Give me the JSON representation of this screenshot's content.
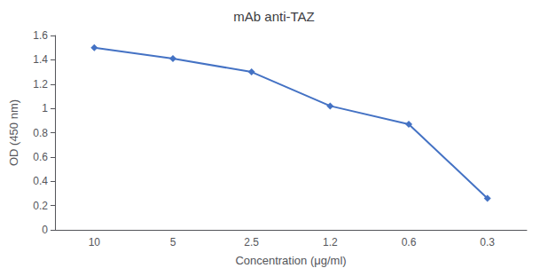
{
  "chart_data": {
    "type": "line",
    "title": "mAb anti-TAZ",
    "xlabel": "Concentration (μg/ml)",
    "ylabel": "OD (450 nm)",
    "categories": [
      "10",
      "5",
      "2.5",
      "1.2",
      "0.6",
      "0.3"
    ],
    "values": [
      1.5,
      1.41,
      1.3,
      1.02,
      0.87,
      0.26
    ],
    "color": "#4472C4",
    "marker": "diamond",
    "ylim": [
      0,
      1.6
    ],
    "yticks": [
      0,
      0.2,
      0.4,
      0.6,
      0.8,
      1.0,
      1.2,
      1.4,
      1.6
    ],
    "grid": false
  }
}
